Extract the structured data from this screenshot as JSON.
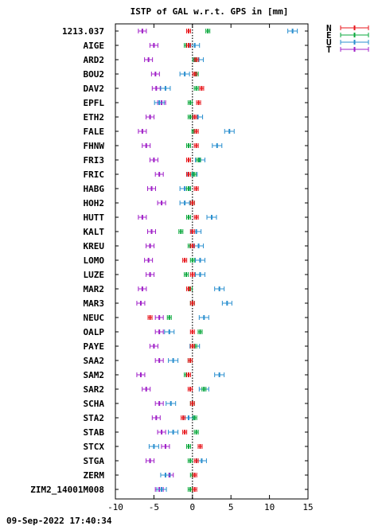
{
  "chart_data": {
    "type": "scatter",
    "title": "ISTP of GAL w.r.t. GPS in [mm]",
    "xlim": [
      -10,
      15
    ],
    "xticks": [
      -10,
      -5,
      0,
      5,
      10,
      15
    ],
    "grid": false,
    "legend_position": "top-right",
    "timestamp": "09-Sep-2022 17:40:34",
    "series": [
      {
        "name": "N",
        "color": "#e8151b"
      },
      {
        "name": "E",
        "color": "#0aa83c"
      },
      {
        "name": "U",
        "color": "#2a8fcf"
      },
      {
        "name": "T",
        "color": "#a020c8"
      }
    ],
    "stations": [
      {
        "name": "1213.037",
        "N": -0.5,
        "E": 2.0,
        "U": 13.0,
        "T": -6.5
      },
      {
        "name": "AIGE",
        "N": -0.5,
        "E": -0.8,
        "U": 0.3,
        "T": -5.0
      },
      {
        "name": "ARD2",
        "N": 0.5,
        "E": 0.3,
        "U": 0.8,
        "T": -5.7
      },
      {
        "name": "BOU2",
        "N": 0.3,
        "E": 0.5,
        "U": -1.0,
        "T": -4.8
      },
      {
        "name": "DAV2",
        "N": 1.2,
        "E": 0.5,
        "U": -3.5,
        "T": -4.7
      },
      {
        "name": "EPFL",
        "N": 0.8,
        "E": -0.3,
        "U": -4.3,
        "T": -4.0
      },
      {
        "name": "ETH2",
        "N": 0.3,
        "E": -0.3,
        "U": 0.7,
        "T": -5.5
      },
      {
        "name": "FALE",
        "N": 0.5,
        "E": 0.2,
        "U": 4.8,
        "T": -6.5
      },
      {
        "name": "FHNW",
        "N": 0.5,
        "E": -0.5,
        "U": 3.2,
        "T": -6.0
      },
      {
        "name": "FRI3",
        "N": -0.5,
        "E": 0.8,
        "U": 1.0,
        "T": -5.0
      },
      {
        "name": "FRIC",
        "N": -0.5,
        "E": 0.2,
        "U": 0.0,
        "T": -4.3
      },
      {
        "name": "HABG",
        "N": 0.5,
        "E": -0.5,
        "U": -1.0,
        "T": -5.3
      },
      {
        "name": "HOH2",
        "N": 0.0,
        "E": 0.0,
        "U": -1.0,
        "T": -4.0
      },
      {
        "name": "HUTT",
        "N": 0.5,
        "E": -0.5,
        "U": 2.5,
        "T": -6.5
      },
      {
        "name": "KALT",
        "N": 0.0,
        "E": -1.5,
        "U": 0.5,
        "T": -5.3
      },
      {
        "name": "KREU",
        "N": 0.0,
        "E": -0.3,
        "U": 0.8,
        "T": -5.5
      },
      {
        "name": "LOMO",
        "N": -1.0,
        "E": 0.0,
        "U": 1.0,
        "T": -5.7
      },
      {
        "name": "LUZE",
        "N": 0.0,
        "E": -0.8,
        "U": 1.0,
        "T": -5.5
      },
      {
        "name": "MAR2",
        "N": -0.5,
        "E": -0.3,
        "U": 3.5,
        "T": -6.5
      },
      {
        "name": "MAR3",
        "N": 0.0,
        "E": 0.0,
        "U": 4.5,
        "T": -6.7
      },
      {
        "name": "NEUC",
        "N": -5.5,
        "E": -3.0,
        "U": 1.5,
        "T": -4.3
      },
      {
        "name": "OALP",
        "N": 0.0,
        "E": 1.0,
        "U": -3.0,
        "T": -4.3
      },
      {
        "name": "PAYE",
        "N": 0.0,
        "E": 0.3,
        "U": 0.3,
        "T": -5.0
      },
      {
        "name": "SAA2",
        "N": -0.3,
        "E": -0.3,
        "U": -2.5,
        "T": -4.3
      },
      {
        "name": "SAM2",
        "N": -0.5,
        "E": -0.8,
        "U": 3.5,
        "T": -6.7
      },
      {
        "name": "SAR2",
        "N": -0.3,
        "E": 1.5,
        "U": 1.5,
        "T": -6.0
      },
      {
        "name": "SCHA",
        "N": 0.0,
        "E": 0.0,
        "U": -2.8,
        "T": -4.3
      },
      {
        "name": "STA2",
        "N": -1.2,
        "E": 0.3,
        "U": -0.5,
        "T": -4.7
      },
      {
        "name": "STAB",
        "N": -1.0,
        "E": 0.5,
        "U": -2.5,
        "T": -4.0
      },
      {
        "name": "STCX",
        "N": 1.0,
        "E": -0.5,
        "U": -5.0,
        "T": -3.5
      },
      {
        "name": "STGA",
        "N": 0.5,
        "E": -0.3,
        "U": 1.2,
        "T": -5.5
      },
      {
        "name": "ZERM",
        "N": 0.3,
        "E": 0.0,
        "U": -3.5,
        "T": -3.0
      },
      {
        "name": "ZIM2_14001M008",
        "N": 0.3,
        "E": -0.3,
        "U": -4.0,
        "T": -4.3
      }
    ]
  }
}
